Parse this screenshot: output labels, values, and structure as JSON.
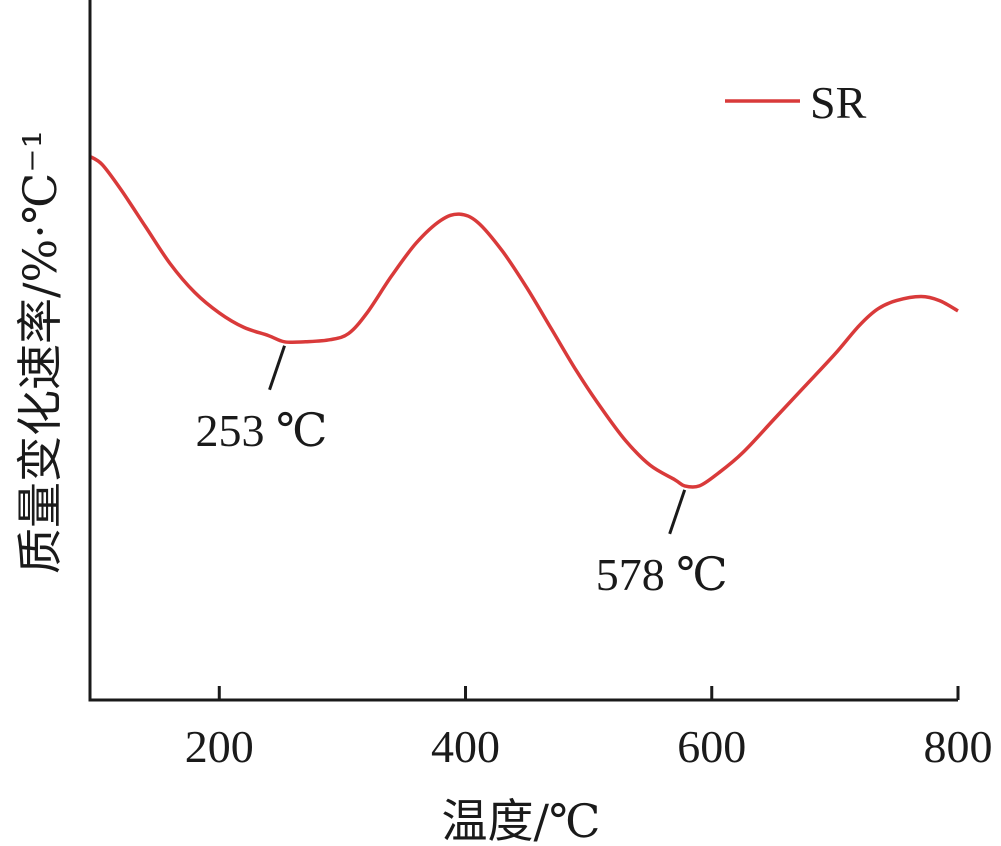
{
  "chart_data": {
    "type": "line",
    "xlabel": "温度/℃",
    "ylabel": "质量变化速率/%·℃⁻¹",
    "xlim": [
      95,
      800
    ],
    "x_ticks": [
      200,
      400,
      600,
      800
    ],
    "x_tick_labels": [
      "200",
      "400",
      "600",
      "800"
    ],
    "y_ticks_shown": false,
    "grid": false,
    "legend_position": "top-right",
    "series": [
      {
        "name": "SR",
        "color": "#d93a3a",
        "x": [
          95,
          105,
          120,
          140,
          160,
          180,
          200,
          220,
          240,
          253,
          270,
          290,
          305,
          320,
          340,
          360,
          380,
          395,
          410,
          430,
          450,
          470,
          490,
          510,
          530,
          550,
          570,
          578,
          590,
          605,
          625,
          650,
          675,
          700,
          720,
          735,
          750,
          770,
          785,
          800
        ],
        "y": [
          6.7,
          6.5,
          5.9,
          5.0,
          4.1,
          3.4,
          2.9,
          2.55,
          2.35,
          2.2,
          2.2,
          2.25,
          2.4,
          2.9,
          3.8,
          4.6,
          5.15,
          5.3,
          5.1,
          4.4,
          3.5,
          2.5,
          1.5,
          0.6,
          -0.2,
          -0.8,
          -1.15,
          -1.3,
          -1.3,
          -1.0,
          -0.5,
          0.3,
          1.1,
          1.9,
          2.6,
          3.0,
          3.2,
          3.3,
          3.2,
          2.95
        ]
      }
    ],
    "ylim": [
      -6.5,
      10.5
    ],
    "annotations": [
      {
        "text": "253 ℃",
        "x": 253,
        "y": 2.2
      },
      {
        "text": "578 ℃",
        "x": 578,
        "y": -1.3
      }
    ]
  }
}
